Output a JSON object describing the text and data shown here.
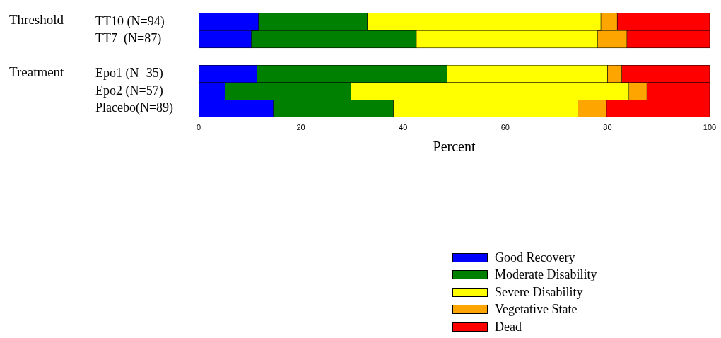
{
  "chart_data": {
    "type": "bar",
    "orientation": "horizontal",
    "stacked": true,
    "xlabel": "Percent",
    "categories": [
      "TT10 (N=94)",
      "TT7  (N=87)",
      null,
      "Epo1 (N=35)",
      "Epo2 (N=57)",
      "Placebo(N=89)"
    ],
    "annotations": [
      "Threshold",
      "Treatment"
    ],
    "series": [
      {
        "name": "Good Recovery",
        "color": "#0000ff",
        "values": [
          11.7,
          10.3,
          null,
          11.4,
          5.2,
          14.6
        ]
      },
      {
        "name": "Moderate Disability",
        "color": "#008000",
        "values": [
          21.3,
          32.3,
          null,
          37.2,
          24.6,
          23.5
        ]
      },
      {
        "name": "Severe Disability",
        "color": "#ffff00",
        "values": [
          45.7,
          35.5,
          null,
          31.4,
          54.4,
          36.1
        ]
      },
      {
        "name": "Vegetative State",
        "color": "#ffa500",
        "values": [
          3.2,
          5.7,
          null,
          2.8,
          3.5,
          5.6
        ]
      },
      {
        "name": "Dead",
        "color": "#ff0000",
        "values": [
          18.1,
          16.2,
          null,
          17.2,
          12.3,
          20.2
        ]
      }
    ],
    "xlim": [
      0,
      100
    ],
    "xticks": [
      0,
      20,
      40,
      60,
      80,
      100
    ],
    "grid": false,
    "legend": "bottom right"
  }
}
